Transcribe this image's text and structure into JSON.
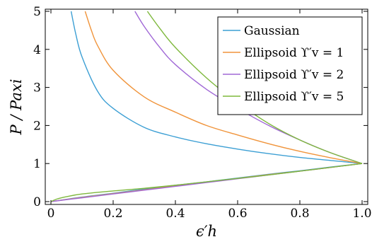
{
  "chart_data": {
    "type": "line",
    "title": "",
    "xlabel": "ϵ′h",
    "ylabel": "P / Paxi",
    "xlim": [
      0,
      1
    ],
    "ylim": [
      0,
      5
    ],
    "xticks": [
      "0",
      "0.2",
      "0.4",
      "0.6",
      "0.8",
      "1.0"
    ],
    "yticks": [
      "0",
      "1",
      "2",
      "3",
      "4",
      "5"
    ],
    "grid": false,
    "legend_position": "top-right",
    "series": [
      {
        "name": "Gaussian",
        "color": "#3c9fd4",
        "branches": [
          [
            [
              0.065,
              5.0
            ],
            [
              0.08,
              4.4
            ],
            [
              0.1,
              3.8
            ],
            [
              0.15,
              2.9
            ],
            [
              0.2,
              2.45
            ],
            [
              0.3,
              1.95
            ],
            [
              0.4,
              1.7
            ],
            [
              0.5,
              1.52
            ],
            [
              0.6,
              1.38
            ],
            [
              0.7,
              1.26
            ],
            [
              0.8,
              1.16
            ],
            [
              0.9,
              1.08
            ],
            [
              1.0,
              1.0
            ]
          ],
          [
            [
              0.0,
              0.0
            ],
            [
              0.1,
              0.12
            ],
            [
              0.2,
              0.22
            ],
            [
              0.3,
              0.33
            ],
            [
              0.4,
              0.43
            ],
            [
              0.5,
              0.52
            ],
            [
              0.6,
              0.62
            ],
            [
              0.7,
              0.72
            ],
            [
              0.8,
              0.81
            ],
            [
              0.9,
              0.91
            ],
            [
              1.0,
              1.0
            ]
          ]
        ]
      },
      {
        "name": "Ellipsoid ϒ′v = 1",
        "color": "#f0943b",
        "branches": [
          [
            [
              0.11,
              5.0
            ],
            [
              0.13,
              4.5
            ],
            [
              0.15,
              4.1
            ],
            [
              0.2,
              3.45
            ],
            [
              0.3,
              2.75
            ],
            [
              0.4,
              2.35
            ],
            [
              0.5,
              2.0
            ],
            [
              0.6,
              1.75
            ],
            [
              0.7,
              1.52
            ],
            [
              0.8,
              1.32
            ],
            [
              0.9,
              1.15
            ],
            [
              1.0,
              1.0
            ]
          ],
          [
            [
              0.0,
              0.0
            ],
            [
              0.1,
              0.11
            ],
            [
              0.2,
              0.21
            ],
            [
              0.3,
              0.31
            ],
            [
              0.4,
              0.41
            ],
            [
              0.5,
              0.51
            ],
            [
              0.6,
              0.61
            ],
            [
              0.7,
              0.71
            ],
            [
              0.8,
              0.8
            ],
            [
              0.9,
              0.9
            ],
            [
              1.0,
              1.0
            ]
          ]
        ]
      },
      {
        "name": "Ellipsoid ϒ′v = 2",
        "color": "#a068d6",
        "branches": [
          [
            [
              0.27,
              5.0
            ],
            [
              0.3,
              4.6
            ],
            [
              0.35,
              4.05
            ],
            [
              0.4,
              3.6
            ],
            [
              0.5,
              2.95
            ],
            [
              0.6,
              2.45
            ],
            [
              0.7,
              2.0
            ],
            [
              0.8,
              1.62
            ],
            [
              0.9,
              1.28
            ],
            [
              1.0,
              1.0
            ]
          ],
          [
            [
              0.0,
              0.0
            ],
            [
              0.1,
              0.1
            ],
            [
              0.2,
              0.2
            ],
            [
              0.3,
              0.3
            ],
            [
              0.4,
              0.4
            ],
            [
              0.5,
              0.5
            ],
            [
              0.6,
              0.6
            ],
            [
              0.7,
              0.7
            ],
            [
              0.8,
              0.8
            ],
            [
              0.9,
              0.9
            ],
            [
              1.0,
              1.0
            ]
          ]
        ]
      },
      {
        "name": "Ellipsoid ϒ′v = 5",
        "color": "#7eb83c",
        "branches": [
          [
            [
              0.31,
              5.0
            ],
            [
              0.35,
              4.55
            ],
            [
              0.4,
              4.05
            ],
            [
              0.5,
              3.25
            ],
            [
              0.6,
              2.6
            ],
            [
              0.7,
              2.05
            ],
            [
              0.8,
              1.62
            ],
            [
              0.9,
              1.28
            ],
            [
              1.0,
              1.0
            ]
          ],
          [
            [
              0.0,
              0.0
            ],
            [
              0.02,
              0.07
            ],
            [
              0.05,
              0.13
            ],
            [
              0.1,
              0.2
            ],
            [
              0.2,
              0.28
            ],
            [
              0.3,
              0.35
            ],
            [
              0.4,
              0.43
            ],
            [
              0.5,
              0.52
            ],
            [
              0.6,
              0.61
            ],
            [
              0.7,
              0.7
            ],
            [
              0.8,
              0.8
            ],
            [
              0.9,
              0.9
            ],
            [
              1.0,
              1.0
            ]
          ]
        ]
      }
    ]
  }
}
